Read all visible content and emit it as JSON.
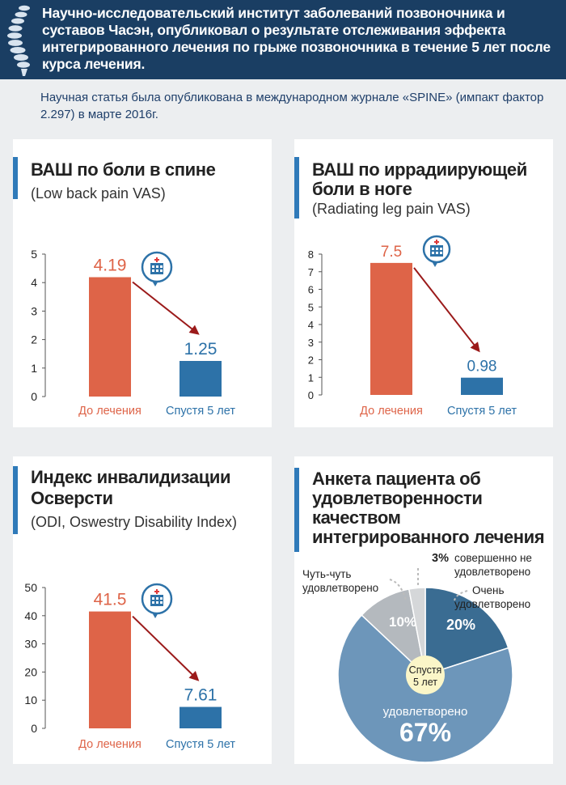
{
  "header": {
    "title": "Научно-исследовательский институт заболеваний позвоночника и суставов Часэн, опубликовал о результате отслеживания эффекта интегрированного лечения по грыже позвоночника в течение 5 лет после курса лечения."
  },
  "subtitle": "Научная статья была опубликована в международном журнале «SPINE» (импакт фактор 2.297) в марте 2016г.",
  "colors": {
    "before": "#de6448",
    "after": "#2d72a8",
    "accent": "#2f7ab9",
    "arrow": "#9b1a1a",
    "header": "#1a3e63"
  },
  "chart_data": [
    {
      "type": "bar",
      "title_line1": "ВАШ по боли в спине",
      "title_line2": "",
      "subtitle": "(Low back pain VAS)",
      "categories": [
        "До лечения",
        "Спустя 5 лет"
      ],
      "values": [
        4.19,
        1.25
      ],
      "value_labels": [
        "4.19",
        "1.25"
      ],
      "yticks": [
        "0",
        "1",
        "2",
        "3",
        "4",
        "5"
      ],
      "ylim": [
        0,
        5
      ]
    },
    {
      "type": "bar",
      "title_line1": "ВАШ по иррадиирующей",
      "title_line2": "боли в ноге",
      "subtitle": "(Radiating leg pain VAS)",
      "categories": [
        "До лечения",
        "Спустя 5 лет"
      ],
      "values": [
        7.5,
        0.98
      ],
      "value_labels": [
        "7.5",
        "0.98"
      ],
      "yticks": [
        "0",
        "1",
        "2",
        "3",
        "4",
        "5",
        "6",
        "7",
        "8"
      ],
      "ylim": [
        0,
        8
      ]
    },
    {
      "type": "bar",
      "title_line1": "Индекс инвалидизации",
      "title_line2": "Осверсти",
      "subtitle": "(ODI, Oswestry Disability Index)",
      "categories": [
        "До лечения",
        "Спустя 5 лет"
      ],
      "values": [
        41.5,
        7.61
      ],
      "value_labels": [
        "41.5",
        "7.61"
      ],
      "yticks": [
        "0",
        "10",
        "20",
        "30",
        "40",
        "50"
      ],
      "ylim": [
        0,
        50
      ]
    },
    {
      "type": "pie",
      "title_lines": [
        "Анкета пациента об",
        "удовлетворенности",
        "качеством",
        "интегрированного лечения"
      ],
      "center_label": [
        "Спустя",
        "5 лет"
      ],
      "slices": [
        {
          "label": "Очень удовлетворено",
          "label_lines": [
            "Очень",
            "удовлетворено"
          ],
          "value": 20,
          "pct": "20%",
          "color": "#3a6c92"
        },
        {
          "label": "удовлетворено",
          "label_lines": [
            "удовлетворено"
          ],
          "value": 67,
          "pct": "67%",
          "color": "#6d96ba"
        },
        {
          "label": "Чуть-чуть удовлетворено",
          "label_lines": [
            "Чуть-чуть",
            "удовлетворено"
          ],
          "value": 10,
          "pct": "10%",
          "color": "#b4b9be"
        },
        {
          "label": "совершенно не удовлетворено",
          "label_lines": [
            "совершенно не",
            "удовлетворено"
          ],
          "value": 3,
          "pct": "3%",
          "color": "#d5d7d9"
        }
      ]
    }
  ]
}
